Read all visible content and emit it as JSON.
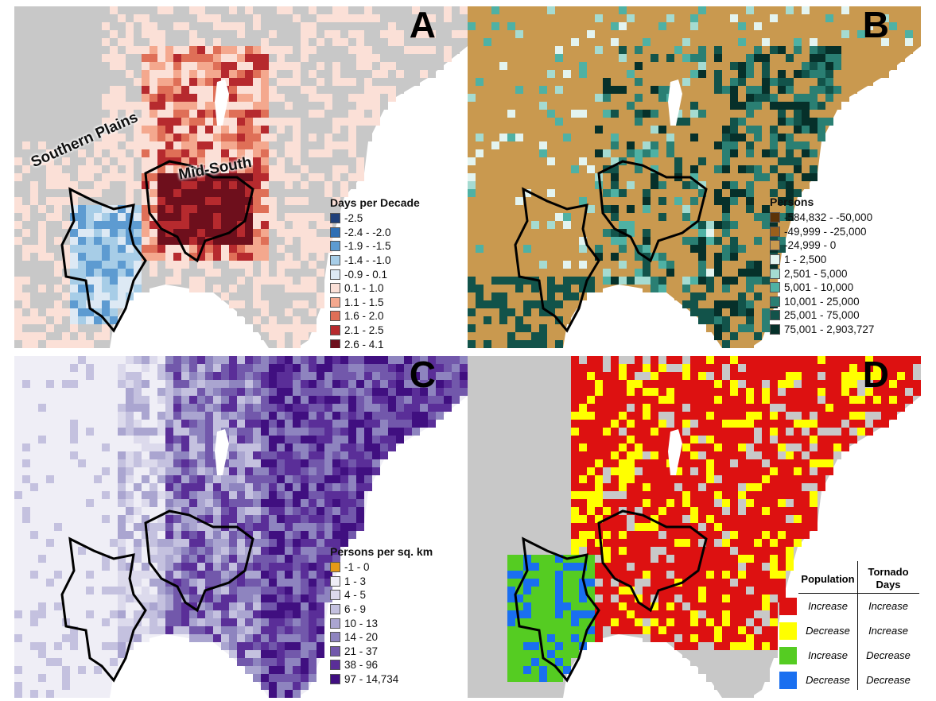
{
  "panels": {
    "a": {
      "letter": "A",
      "region_labels": {
        "southern_plains": "Southern Plains",
        "mid_south": "Mid-South"
      },
      "legend": {
        "title": "Days per Decade",
        "items": [
          {
            "label": "-2.5",
            "color": "#1f3f79"
          },
          {
            "label": "-2.4 - -2.0",
            "color": "#2f6fb4"
          },
          {
            "label": "-1.9 - -1.5",
            "color": "#5d9bd1"
          },
          {
            "label": "-1.4 - -1.0",
            "color": "#a7cde7"
          },
          {
            "label": "-0.9 - 0.1",
            "color": "#dde9f4"
          },
          {
            "label": "0.1 - 1.0",
            "color": "#fbe0d7"
          },
          {
            "label": "1.1 - 1.5",
            "color": "#f4a88e"
          },
          {
            "label": "1.6 - 2.0",
            "color": "#df6f57"
          },
          {
            "label": "2.1 - 2.5",
            "color": "#b62a2e"
          },
          {
            "label": "2.6 - 4.1",
            "color": "#6e0f1c"
          }
        ]
      }
    },
    "b": {
      "letter": "B",
      "legend": {
        "title": "Persons",
        "items": [
          {
            "label": "-584,832 - -50,000",
            "color": "#5c3308"
          },
          {
            "label": "-49,999 - -25,000",
            "color": "#9a5f1c"
          },
          {
            "label": "-24,999 - 0",
            "color": "#c9994f"
          },
          {
            "label": "1 - 2,500",
            "color": "#e3f4f0"
          },
          {
            "label": "2,501 - 5,000",
            "color": "#a5dbd1"
          },
          {
            "label": "5,001 - 10,000",
            "color": "#4fb1a4"
          },
          {
            "label": "10,001 - 25,000",
            "color": "#2a7f73"
          },
          {
            "label": "25,001 - 75,000",
            "color": "#12534a"
          },
          {
            "label": "75,001 - 2,903,727",
            "color": "#06302a"
          }
        ]
      }
    },
    "c": {
      "letter": "C",
      "legend": {
        "title": "Persons per sq. km",
        "items": [
          {
            "label": "-1 - 0",
            "color": "#e59a17"
          },
          {
            "label": "1 - 3",
            "color": "#efeef6"
          },
          {
            "label": "4 - 5",
            "color": "#dcdaec"
          },
          {
            "label": "6 - 9",
            "color": "#c4c1df"
          },
          {
            "label": "10 - 13",
            "color": "#aaa5d0"
          },
          {
            "label": "14 - 20",
            "color": "#8e84bf"
          },
          {
            "label": "21 - 37",
            "color": "#7258ab"
          },
          {
            "label": "38 - 96",
            "color": "#5a2e98"
          },
          {
            "label": "97 - 14,734",
            "color": "#400f80"
          }
        ]
      }
    },
    "d": {
      "letter": "D",
      "legend": {
        "col1_header": "Population",
        "col2_header": "Tornado Days",
        "rows": [
          {
            "population": "Increase",
            "tornado_days": "Increase",
            "color": "#dd1111"
          },
          {
            "population": "Decrease",
            "tornado_days": "Increase",
            "color": "#ffff00"
          },
          {
            "population": "Increase",
            "tornado_days": "Decrease",
            "color": "#55cc22"
          },
          {
            "population": "Decrease",
            "tornado_days": "Decrease",
            "color": "#1a6ff0"
          }
        ]
      }
    }
  },
  "map_palettes": {
    "gray": "#c8c8c8",
    "lake": "#ffffff"
  }
}
